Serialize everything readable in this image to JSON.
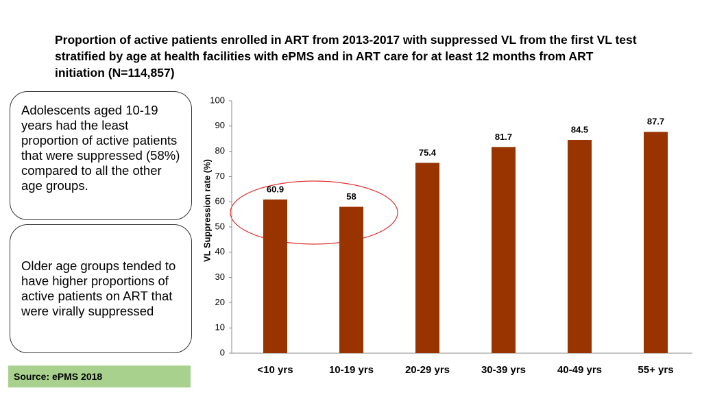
{
  "chart_data": {
    "type": "bar",
    "title": "Proportion of active patients enrolled in ART from 2013-2017 with suppressed VL from the first VL test stratified by age at health facilities with ePMS and in ART care for at least 12 months from ART initiation (N=114,857)",
    "y_label": "VL Suppression rate (%)",
    "categories": [
      "<10 yrs",
      "10-19 yrs",
      "20-29 yrs",
      "30-39 yrs",
      "40-49 yrs",
      "55+ yrs"
    ],
    "values": [
      60.9,
      58,
      75.4,
      81.7,
      84.5,
      87.7
    ],
    "color": "#993300",
    "ylim": [
      0,
      100
    ],
    "yticks": [
      0,
      10,
      20,
      30,
      40,
      50,
      60,
      70,
      80,
      90,
      100
    ],
    "grid": false
  },
  "callouts": [
    "Adolescents aged 10-19 years had the least proportion of active patients that were suppressed (58%) compared to all the other age groups.",
    "Older age groups tended to have higher proportions of active patients on ART that were virally suppressed"
  ],
  "source": "Source:  ePMS 2018"
}
